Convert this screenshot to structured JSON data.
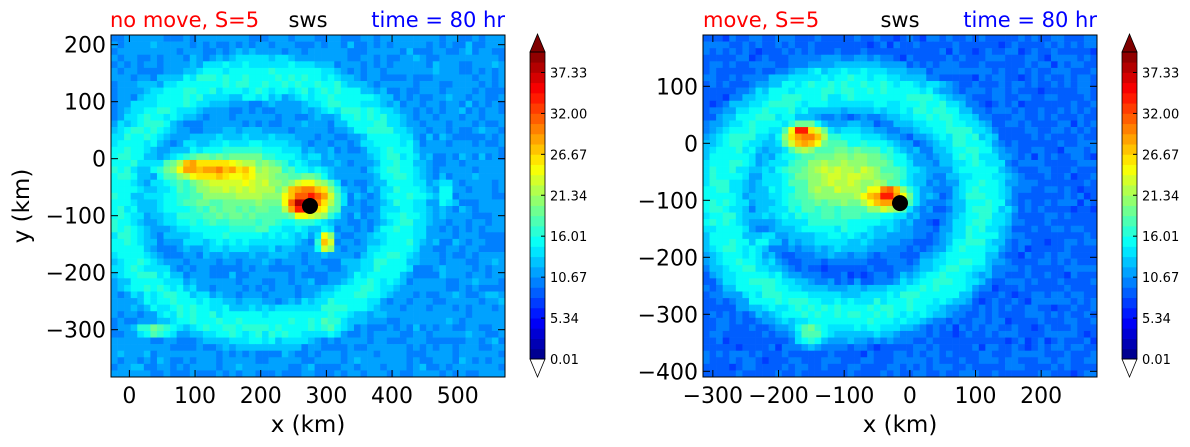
{
  "chart_data": [
    {
      "type": "heatmap",
      "title_left": "no move, S=5",
      "title_center": "sws",
      "title_right": "time = 80 hr",
      "title_left_color": "#ff0000",
      "title_center_color": "#000000",
      "title_right_color": "#0000ff",
      "xlabel": "x (km)",
      "ylabel": "y (km)",
      "xlim": [
        -28,
        572
      ],
      "ylim": [
        -383,
        217
      ],
      "xticks": [
        0,
        100,
        200,
        300,
        400,
        500
      ],
      "yticks": [
        -300,
        -200,
        -100,
        0,
        100,
        200
      ],
      "xtick_labels": [
        "0",
        "100",
        "200",
        "300",
        "400",
        "500"
      ],
      "ytick_labels": [
        "−300",
        "−200",
        "−100",
        "0",
        "100",
        "200"
      ],
      "background_value": 11,
      "features": [
        {
          "kind": "annulus",
          "cx": 200,
          "cy": -75,
          "r": 220,
          "w": 75,
          "v": 16
        },
        {
          "kind": "blob",
          "cx": 170,
          "cy": -60,
          "rx": 210,
          "ry": 155,
          "v": 20
        },
        {
          "kind": "blob",
          "cx": 165,
          "cy": -40,
          "rx": 150,
          "ry": 90,
          "v": 24
        },
        {
          "kind": "blob",
          "cx": 130,
          "cy": -20,
          "rx": 110,
          "ry": 38,
          "v": 29
        },
        {
          "kind": "blob",
          "cx": 95,
          "cy": -15,
          "rx": 45,
          "ry": 20,
          "v": 31
        },
        {
          "kind": "blob",
          "cx": 175,
          "cy": -25,
          "rx": 40,
          "ry": 16,
          "v": 30
        },
        {
          "kind": "blob",
          "cx": 270,
          "cy": -70,
          "rx": 62,
          "ry": 52,
          "v": 33
        },
        {
          "kind": "blob",
          "cx": 262,
          "cy": -80,
          "rx": 35,
          "ry": 30,
          "v": 38
        },
        {
          "kind": "blob",
          "cx": 300,
          "cy": -145,
          "rx": 18,
          "ry": 30,
          "v": 28
        },
        {
          "kind": "blob",
          "cx": 195,
          "cy": 115,
          "rx": 60,
          "ry": 25,
          "v": 17
        },
        {
          "kind": "blob",
          "cx": 40,
          "cy": -300,
          "rx": 55,
          "ry": 22,
          "v": 19
        },
        {
          "kind": "blob",
          "cx": 305,
          "cy": -290,
          "rx": 45,
          "ry": 40,
          "v": 18
        },
        {
          "kind": "blob",
          "cx": 560,
          "cy": -300,
          "rx": 60,
          "ry": 70,
          "v": 6
        },
        {
          "kind": "blob",
          "cx": 540,
          "cy": 170,
          "rx": 80,
          "ry": 50,
          "v": 7
        },
        {
          "kind": "blob",
          "cx": 480,
          "cy": -60,
          "rx": 25,
          "ry": 55,
          "v": 16
        }
      ],
      "center_marker": {
        "x": 275,
        "y": -83,
        "color": "#000000"
      },
      "colorbar": {
        "ticks": [
          0.01,
          5.34,
          10.67,
          16.01,
          21.34,
          26.67,
          32.0,
          37.33
        ],
        "tick_labels": [
          "0.01",
          "5.34",
          "10.67",
          "16.01",
          "21.34",
          "26.67",
          "32.00",
          "37.33"
        ],
        "vmin": 0.01,
        "vmax": 40,
        "levels": 30,
        "extend": "both",
        "colormap": "jet"
      }
    },
    {
      "type": "heatmap",
      "title_left": "move, S=5",
      "title_center": "sws",
      "title_right": "time = 80 hr",
      "title_left_color": "#ff0000",
      "title_center_color": "#000000",
      "title_right_color": "#0000ff",
      "xlabel": "x (km)",
      "ylabel": "",
      "xlim": [
        -315,
        285
      ],
      "ylim": [
        -410,
        190
      ],
      "xticks": [
        -300,
        -200,
        -100,
        0,
        100,
        200
      ],
      "yticks": [
        -400,
        -300,
        -200,
        -100,
        0,
        100
      ],
      "xtick_labels": [
        "−300",
        "−200",
        "−100",
        "0",
        "100",
        "200"
      ],
      "ytick_labels": [
        "−400",
        "−300",
        "−200",
        "−100",
        "0",
        "100"
      ],
      "background_value": 9,
      "features": [
        {
          "kind": "annulus",
          "cx": -90,
          "cy": -100,
          "r": 200,
          "w": 80,
          "v": 16
        },
        {
          "kind": "blob",
          "cx": -110,
          "cy": -80,
          "rx": 190,
          "ry": 160,
          "v": 19
        },
        {
          "kind": "blob",
          "cx": -100,
          "cy": -60,
          "rx": 150,
          "ry": 110,
          "v": 23
        },
        {
          "kind": "blob",
          "cx": -160,
          "cy": 10,
          "rx": 48,
          "ry": 36,
          "v": 31
        },
        {
          "kind": "blob",
          "cx": -165,
          "cy": 20,
          "rx": 25,
          "ry": 18,
          "v": 35
        },
        {
          "kind": "blob",
          "cx": -40,
          "cy": -95,
          "rx": 60,
          "ry": 40,
          "v": 30
        },
        {
          "kind": "blob",
          "cx": -35,
          "cy": -90,
          "rx": 35,
          "ry": 24,
          "v": 36
        },
        {
          "kind": "blob",
          "cx": -220,
          "cy": -170,
          "rx": 50,
          "ry": 30,
          "v": 15
        },
        {
          "kind": "blob",
          "cx": -150,
          "cy": -330,
          "rx": 45,
          "ry": 40,
          "v": 19
        },
        {
          "kind": "blob",
          "cx": 240,
          "cy": -30,
          "rx": 70,
          "ry": 180,
          "v": 6
        },
        {
          "kind": "blob",
          "cx": 260,
          "cy": 150,
          "rx": 80,
          "ry": 60,
          "v": 5
        },
        {
          "kind": "blob",
          "cx": 20,
          "cy": 100,
          "rx": 90,
          "ry": 30,
          "v": 14
        }
      ],
      "center_marker": {
        "x": -15,
        "y": -105,
        "color": "#000000"
      },
      "colorbar": {
        "ticks": [
          0.01,
          5.34,
          10.67,
          16.01,
          21.34,
          26.67,
          32.0,
          37.33
        ],
        "tick_labels": [
          "0.01",
          "5.34",
          "10.67",
          "16.01",
          "21.34",
          "26.67",
          "32.00",
          "37.33"
        ],
        "vmin": 0.01,
        "vmax": 40,
        "levels": 30,
        "extend": "both",
        "colormap": "jet"
      }
    }
  ]
}
